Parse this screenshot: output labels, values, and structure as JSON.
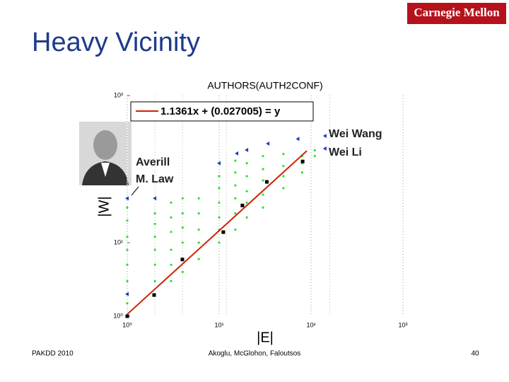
{
  "slide": {
    "title": "Heavy Vicinity",
    "logo": "Carnegie Mellon",
    "footer_left": "PAKDD 2010",
    "footer_center": "Akoglu, McGlohon, Faloutsos",
    "page_number": "40"
  },
  "chart_data": {
    "type": "scatter",
    "title": "AUTHORS(AUTH2CONF)",
    "xlabel": "|E|",
    "ylabel": "|W|",
    "log_x": true,
    "log_y": true,
    "grid": true,
    "xlim": [
      1,
      1000
    ],
    "ylim": [
      1,
      1000
    ],
    "xticks": [
      {
        "value": 1,
        "label": "10⁰"
      },
      {
        "value": 10,
        "label": "10¹"
      },
      {
        "value": 100,
        "label": "10²"
      },
      {
        "value": 1000,
        "label": "10³"
      }
    ],
    "yticks": [
      {
        "value": 1,
        "label": "10⁰"
      },
      {
        "value": 10,
        "label": "10¹"
      },
      {
        "value": 1000,
        "label": "10³"
      }
    ],
    "series": [
      {
        "marker": "dot",
        "color": "#2ee02e",
        "x": [
          1,
          1,
          1,
          1,
          1,
          1,
          1,
          1,
          2,
          2,
          2,
          2,
          2,
          2,
          2,
          3,
          3,
          3,
          3,
          3,
          3,
          4,
          4,
          4,
          4,
          4,
          4,
          6,
          6,
          6,
          6,
          6,
          10,
          10,
          10,
          10,
          10,
          10,
          15,
          15,
          15,
          15,
          15,
          15,
          20,
          20,
          20,
          20,
          20,
          30,
          30,
          30,
          30,
          30,
          50,
          50,
          50,
          50,
          80,
          80,
          80,
          110,
          110
        ],
        "values": [
          1.5,
          2,
          3,
          5,
          8,
          12,
          20,
          30,
          2,
          3,
          5,
          8,
          12,
          18,
          25,
          3,
          5,
          8,
          14,
          22,
          35,
          4,
          6,
          10,
          16,
          25,
          40,
          6,
          10,
          15,
          25,
          40,
          10,
          15,
          22,
          35,
          55,
          80,
          15,
          25,
          40,
          60,
          90,
          130,
          22,
          35,
          50,
          80,
          120,
          30,
          45,
          70,
          100,
          150,
          55,
          80,
          110,
          160,
          90,
          120,
          150,
          150,
          180
        ]
      },
      {
        "marker": "triangle",
        "color": "#1a3fbf",
        "x": [
          1,
          1,
          2,
          10,
          15.6,
          20,
          34,
          72,
          142,
          142
        ],
        "values": [
          2,
          40,
          40,
          120,
          163,
          182,
          222,
          257,
          282,
          190
        ]
      },
      {
        "marker": "square",
        "color": "#000000",
        "x": [
          1,
          1.96,
          3.98,
          11.1,
          17.9,
          33,
          81
        ],
        "values": [
          1,
          1.94,
          5.9,
          13.9,
          32,
          67,
          127
        ]
      }
    ],
    "fit": {
      "label": "1.1361x + (0.027005) = y",
      "slope": 1.1361,
      "intercept": 0.027005,
      "x_range": [
        1,
        90
      ],
      "color": "#cc2200"
    },
    "annotations": [
      {
        "lines": [
          "Averill",
          "M. Law"
        ]
      },
      {
        "lines": [
          "Wei Wang"
        ]
      },
      {
        "lines": [
          "Wei Li"
        ]
      }
    ]
  }
}
